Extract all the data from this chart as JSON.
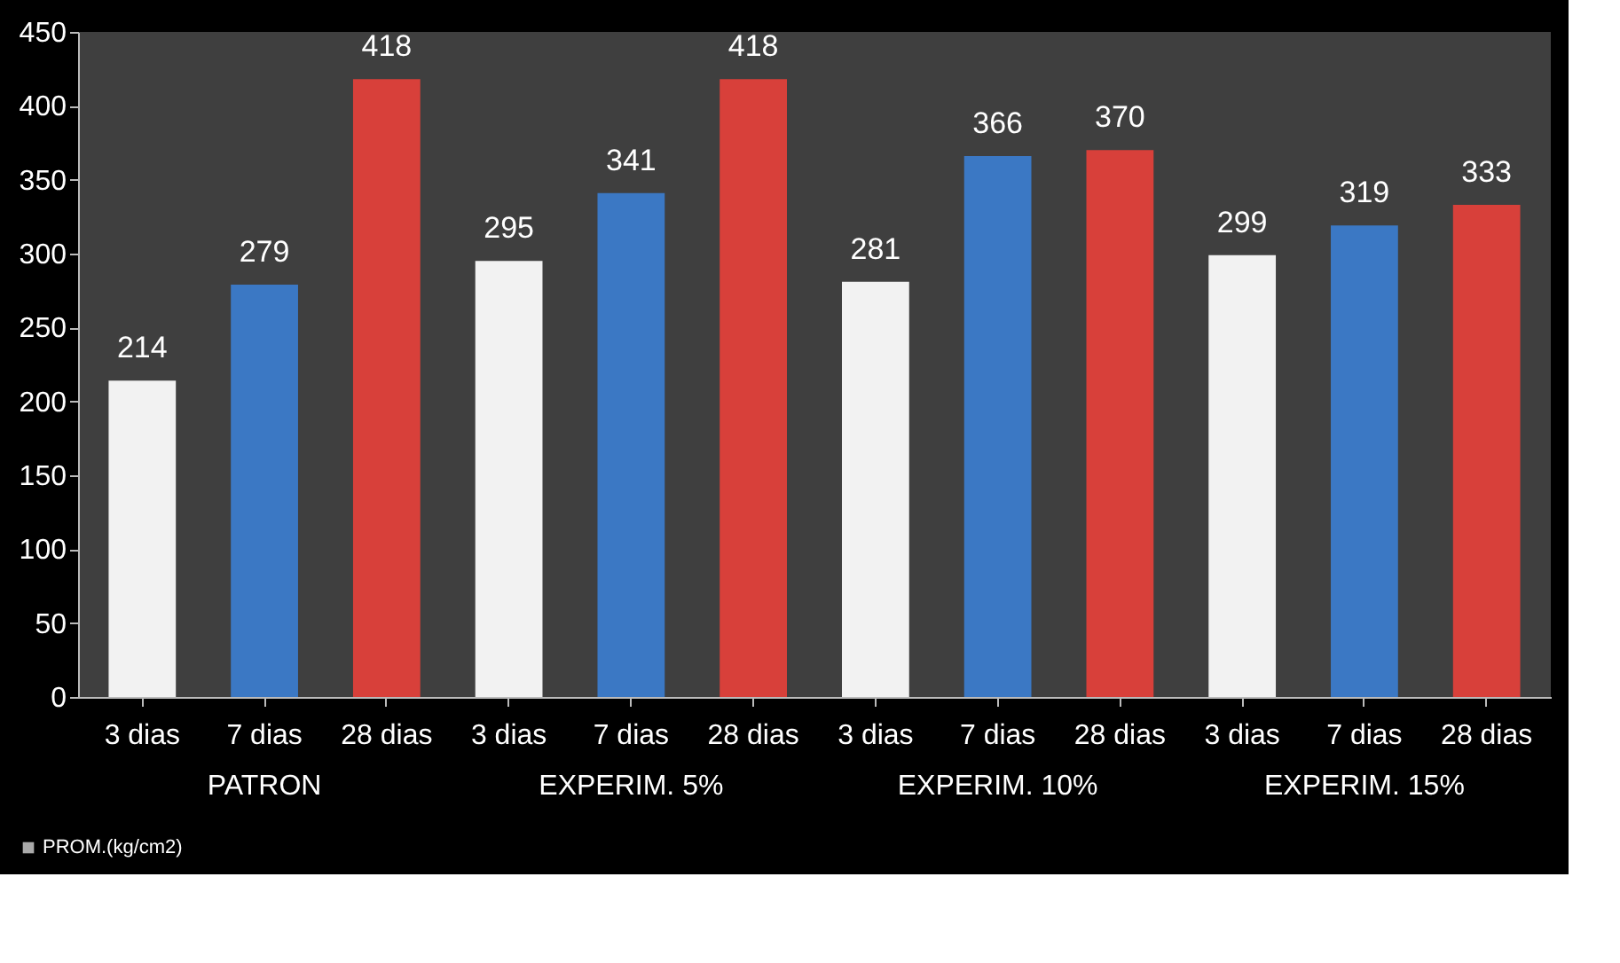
{
  "chart_data": {
    "type": "bar",
    "categories": [
      "3 dias",
      "7 dias",
      "28 dias",
      "3 dias",
      "7 dias",
      "28 dias",
      "3 dias",
      "7 dias",
      "28 dias",
      "3 dias",
      "7 dias",
      "28 dias"
    ],
    "series": [
      {
        "name": "PROM.(kg/cm2)",
        "color": "#f2f2f2",
        "colors": [
          "#f2f2f2",
          "#3b78c4",
          "#d8403a",
          "#f2f2f2",
          "#3b78c4",
          "#d8403a",
          "#f2f2f2",
          "#3b78c4",
          "#d8403a",
          "#f2f2f2",
          "#3b78c4",
          "#d8403a"
        ],
        "values": [
          214,
          279,
          418,
          295,
          341,
          418,
          281,
          366,
          370,
          299,
          319,
          333
        ]
      }
    ],
    "annotations": [
      "PATRON",
      "EXPERIM. 5%",
      "EXPERIM. 10%",
      "EXPERIM. 15%"
    ],
    "ylim": [
      0,
      450
    ],
    "yticks": [
      0,
      50,
      100,
      150,
      200,
      250,
      300,
      350,
      400,
      450
    ],
    "data_labels": true,
    "grid": false,
    "legend": "bottom left"
  }
}
